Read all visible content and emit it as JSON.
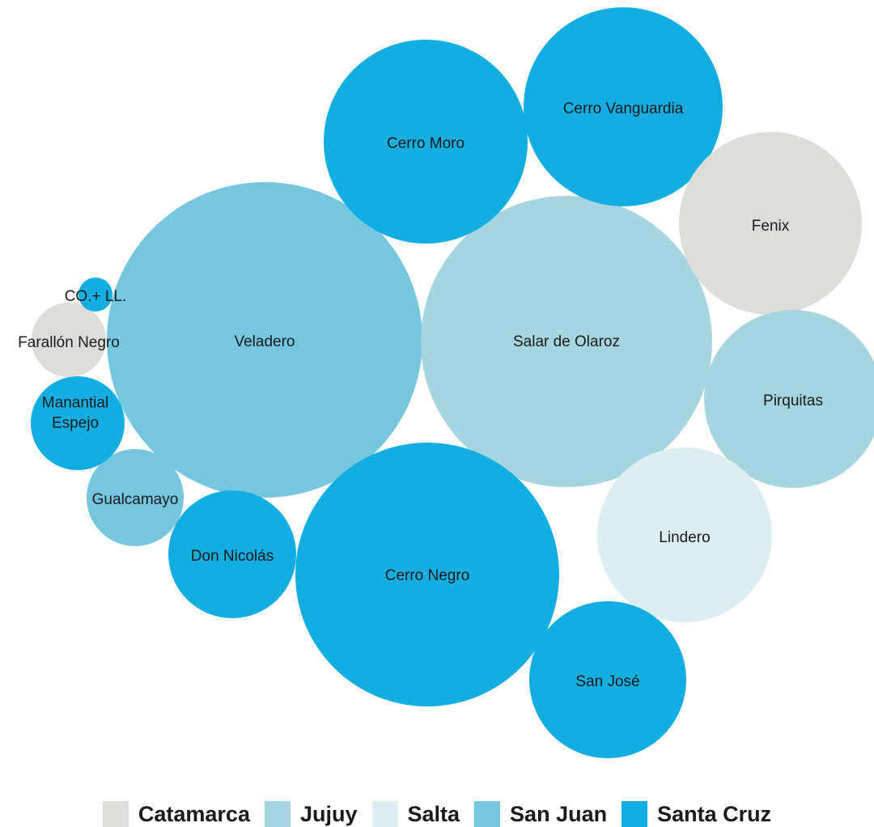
{
  "chart_data": {
    "type": "bubble",
    "title": "",
    "series": [
      {
        "name": "Catamarca",
        "color": "#dcdcd8"
      },
      {
        "name": "Jujuy",
        "color": "#a6d5e1"
      },
      {
        "name": "Salta",
        "color": "#dceef2"
      },
      {
        "name": "San Juan",
        "color": "#75c6df"
      },
      {
        "name": "Santa Cruz",
        "color": "#12aee2"
      }
    ],
    "bubbles": [
      {
        "label": "Veladero",
        "lines": [
          "Veladero"
        ],
        "group": "San Juan",
        "relative_size": 1.0
      },
      {
        "label": "Salar de Olaroz",
        "lines": [
          "Salar de Olaroz"
        ],
        "group": "Jujuy",
        "relative_size": 0.9
      },
      {
        "label": "Cerro Negro",
        "lines": [
          "Cerro Negro"
        ],
        "group": "Santa Cruz",
        "relative_size": 0.72
      },
      {
        "label": "Cerro Moro",
        "lines": [
          "Cerro Moro"
        ],
        "group": "Santa Cruz",
        "relative_size": 0.41
      },
      {
        "label": "Cerro Vanguardia",
        "lines": [
          "Cerro Vanguardia"
        ],
        "group": "Santa Cruz",
        "relative_size": 0.41
      },
      {
        "label": "Fenix",
        "lines": [
          "Fenix"
        ],
        "group": "Catamarca",
        "relative_size": 0.33
      },
      {
        "label": "Pirquitas",
        "lines": [
          "Pirquitas"
        ],
        "group": "Jujuy",
        "relative_size": 0.32
      },
      {
        "label": "Lindero",
        "lines": [
          "Lindero"
        ],
        "group": "Salta",
        "relative_size": 0.3
      },
      {
        "label": "San José",
        "lines": [
          "San José"
        ],
        "group": "Santa Cruz",
        "relative_size": 0.24
      },
      {
        "label": "Don Nicolás",
        "lines": [
          "Don Nicolás"
        ],
        "group": "Santa Cruz",
        "relative_size": 0.16
      },
      {
        "label": "Gualcamayo",
        "lines": [
          "Gualcamayo"
        ],
        "group": "San Juan",
        "relative_size": 0.095
      },
      {
        "label": "Manantial Espejo",
        "lines": [
          "Manantial",
          "Espejo"
        ],
        "group": "Santa Cruz",
        "relative_size": 0.088
      },
      {
        "label": "Farallón Negro",
        "lines": [
          "Farallón Negro"
        ],
        "group": "Catamarca",
        "relative_size": 0.057
      },
      {
        "label": "CO.+ LL.",
        "lines": [
          "CO.+ LL."
        ],
        "group": "Santa Cruz",
        "relative_size": 0.012
      }
    ]
  }
}
